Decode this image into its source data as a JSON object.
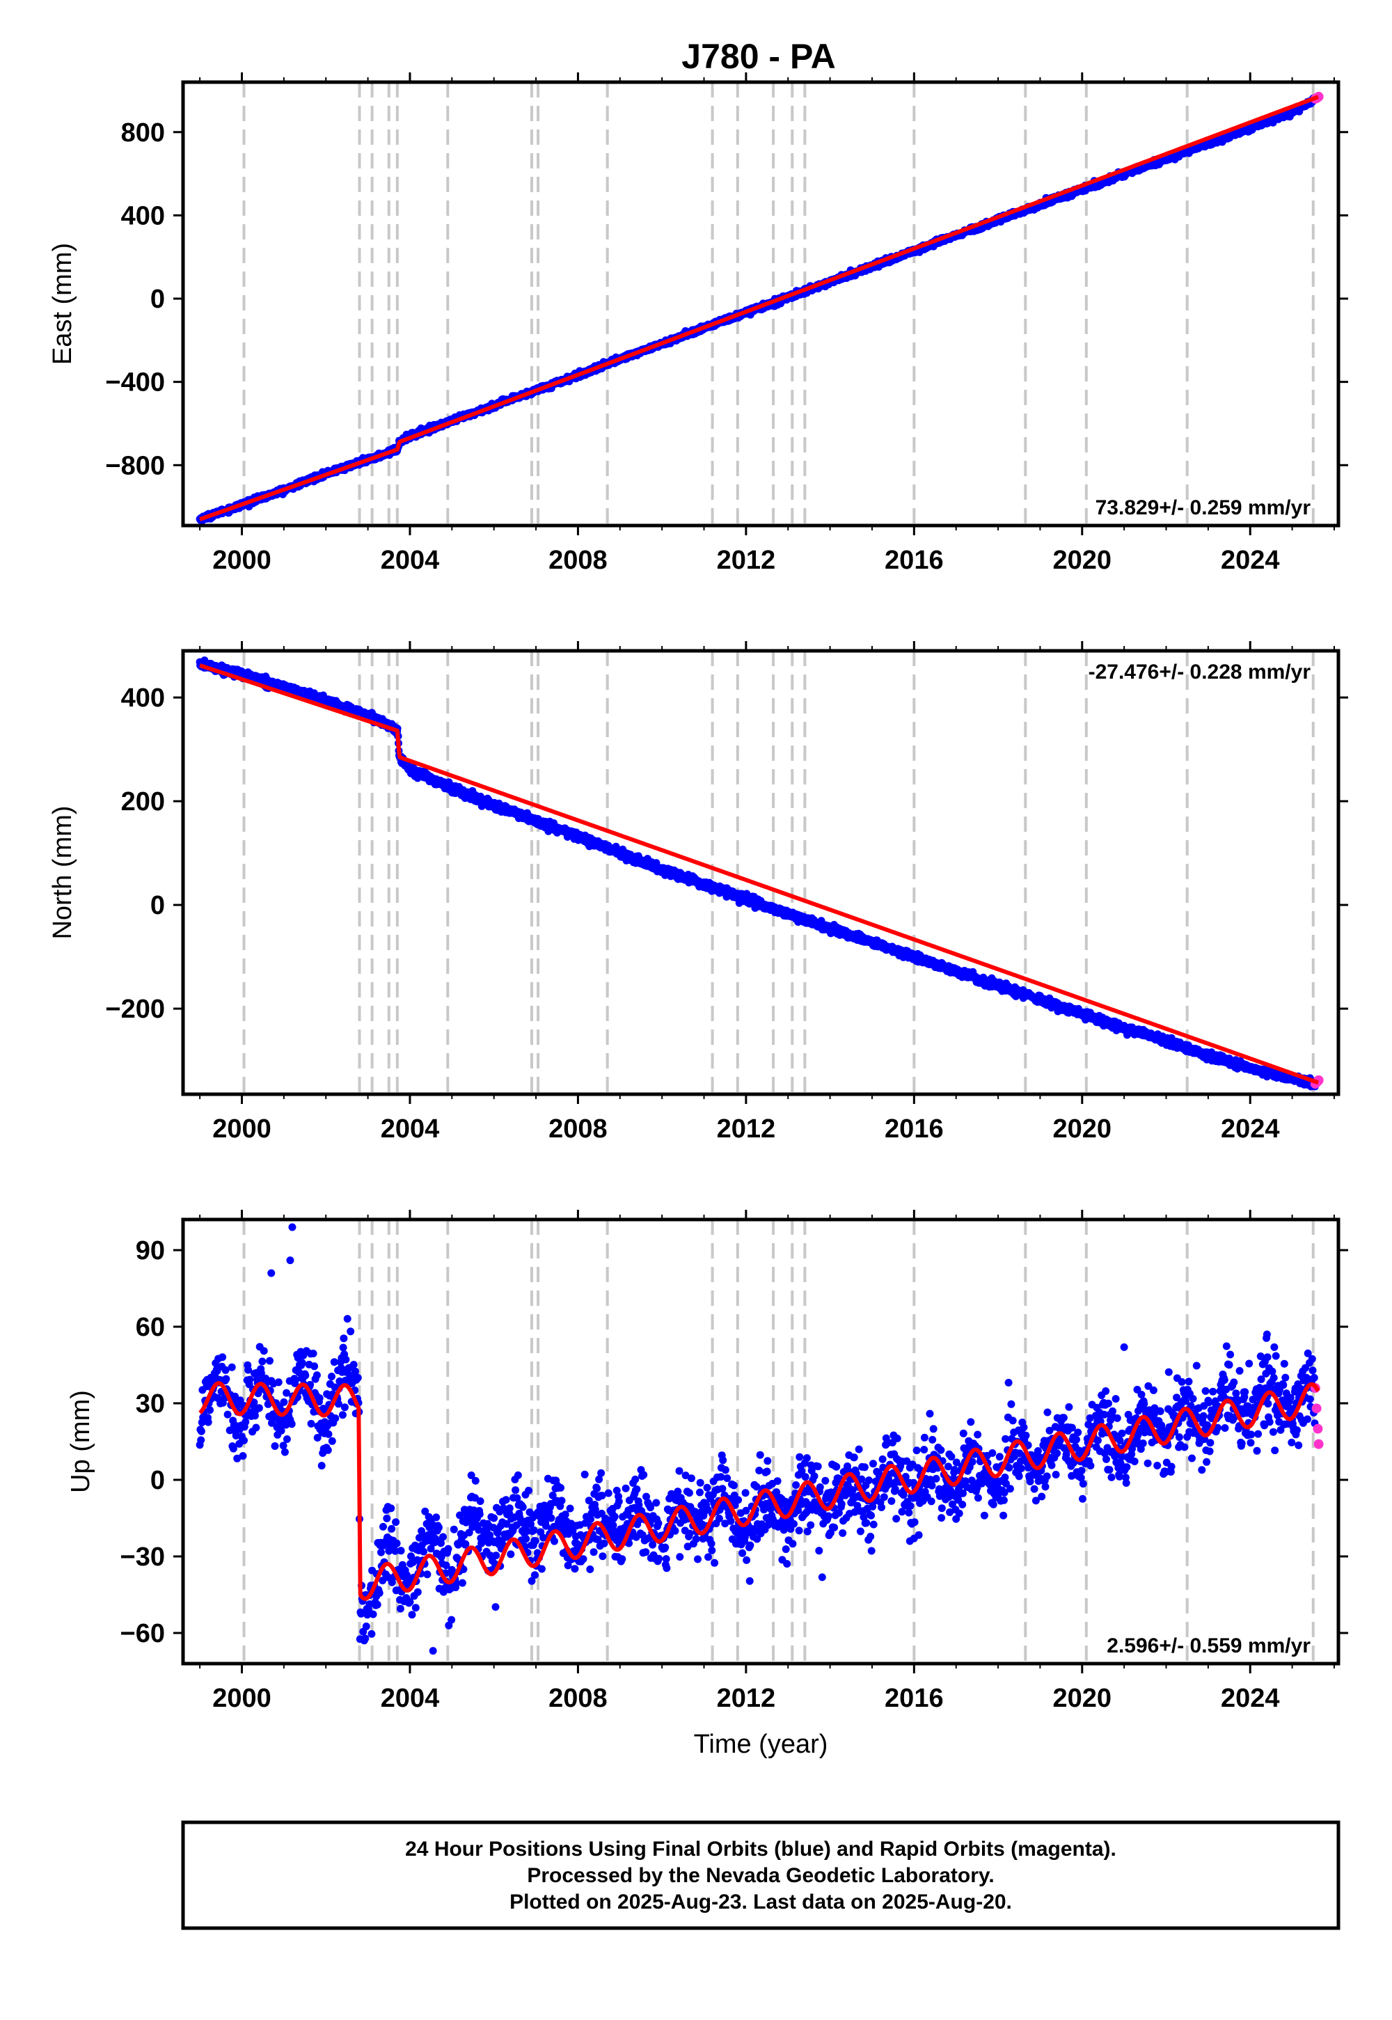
{
  "title": "J780 - PA",
  "footer": {
    "lines": [
      "24 Hour Positions Using Final Orbits (blue) and Rapid Orbits (magenta).",
      "Processed by the Nevada Geodetic Laboratory.",
      "Plotted on 2025-Aug-23. Last data on 2025-Aug-20."
    ]
  },
  "colors": {
    "final_orbits": "#0000ff",
    "rapid_orbits": "#ff33cc",
    "model": "#ff0000",
    "event_lines": "#c8c8c8",
    "frame": "#000000"
  },
  "chart_data": [
    {
      "type": "scatter",
      "ylabel": "East (mm)",
      "xlim": [
        1998.6,
        2026.1
      ],
      "ylim": [
        -1090,
        1040
      ],
      "x_ticks": [
        2000,
        2004,
        2008,
        2012,
        2016,
        2020,
        2024
      ],
      "x_tick_labels": [
        "2000",
        "2004",
        "2008",
        "2012",
        "2016",
        "2020",
        "2024"
      ],
      "y_ticks": [
        -800,
        -400,
        0,
        400,
        800
      ],
      "y_tick_labels": [
        "−800",
        "−400",
        "0",
        "400",
        "800"
      ],
      "rate": "73.829+/- 0.259 mm/yr",
      "rate_placement": "bottom-right",
      "event_lines": [
        2000.05,
        2002.8,
        2003.1,
        2003.5,
        2003.7,
        2004.9,
        2006.9,
        2007.05,
        2008.7,
        2011.2,
        2011.8,
        2012.65,
        2013.1,
        2013.4,
        2016.0,
        2018.65,
        2020.1,
        2022.5,
        2025.5
      ],
      "series": [
        {
          "role": "final orbits (blue)",
          "x": [
            1999.0,
            2000.0,
            2001.0,
            2002.0,
            2003.0,
            2003.7,
            2003.75,
            2004.0,
            2005.0,
            2006.0,
            2007.0,
            2008.0,
            2009.0,
            2010.0,
            2011.0,
            2012.0,
            2013.0,
            2014.0,
            2015.0,
            2016.0,
            2017.0,
            2018.0,
            2019.0,
            2020.0,
            2021.0,
            2022.0,
            2023.0,
            2024.0,
            2025.0,
            2025.55
          ],
          "values": [
            -1060,
            -990,
            -920,
            -840,
            -775,
            -725,
            -688,
            -660,
            -588,
            -515,
            -440,
            -368,
            -290,
            -218,
            -140,
            -66,
            6,
            80,
            155,
            230,
            305,
            378,
            452,
            525,
            600,
            673,
            745,
            820,
            895,
            960
          ]
        },
        {
          "role": "rapid orbits (magenta)",
          "x": [
            2025.55,
            2025.58,
            2025.61,
            2025.63
          ],
          "values": [
            960,
            963,
            967,
            970
          ]
        }
      ],
      "model": {
        "x": [
          1999.0,
          2003.7,
          2003.75,
          2025.63
        ],
        "values": [
          -1060,
          -725,
          -688,
          970
        ]
      }
    },
    {
      "type": "scatter",
      "ylabel": "North (mm)",
      "xlim": [
        1998.6,
        2026.1
      ],
      "ylim": [
        -365,
        490
      ],
      "x_ticks": [
        2000,
        2004,
        2008,
        2012,
        2016,
        2020,
        2024
      ],
      "x_tick_labels": [
        "2000",
        "2004",
        "2008",
        "2012",
        "2016",
        "2020",
        "2024"
      ],
      "y_ticks": [
        -200,
        0,
        200,
        400
      ],
      "y_tick_labels": [
        "−200",
        "0",
        "200",
        "400"
      ],
      "rate": "-27.476+/- 0.228 mm/yr",
      "rate_placement": "top-right",
      "event_lines": [
        2000.05,
        2002.8,
        2003.1,
        2003.5,
        2003.7,
        2004.9,
        2006.9,
        2007.05,
        2008.7,
        2011.2,
        2011.8,
        2012.65,
        2013.1,
        2013.4,
        2016.0,
        2018.65,
        2020.1,
        2022.5,
        2025.5
      ],
      "series": [
        {
          "role": "final orbits (blue)",
          "x": [
            1999.0,
            2000.0,
            2001.0,
            2002.0,
            2003.0,
            2003.7,
            2003.75,
            2004.0,
            2005.0,
            2006.0,
            2007.0,
            2008.0,
            2009.0,
            2010.0,
            2011.0,
            2012.0,
            2013.0,
            2014.0,
            2015.0,
            2016.0,
            2017.0,
            2018.0,
            2019.0,
            2020.0,
            2021.0,
            2022.0,
            2023.0,
            2024.0,
            2025.0,
            2025.55
          ],
          "values": [
            465,
            445,
            420,
            393,
            365,
            338,
            285,
            262,
            225,
            192,
            162,
            132,
            100,
            68,
            40,
            12,
            -18,
            -45,
            -72,
            -100,
            -128,
            -155,
            -183,
            -210,
            -238,
            -262,
            -290,
            -315,
            -335,
            -345
          ]
        },
        {
          "role": "rapid orbits (magenta)",
          "x": [
            2025.55,
            2025.58,
            2025.61,
            2025.63
          ],
          "values": [
            -345,
            -342,
            -340,
            -338
          ]
        }
      ],
      "model": {
        "x": [
          1999.0,
          2003.7,
          2003.75,
          2025.63
        ],
        "values": [
          462,
          336,
          285,
          -343
        ]
      }
    },
    {
      "type": "scatter",
      "ylabel": "Up (mm)",
      "xlabel": "Time (year)",
      "xlim": [
        1998.6,
        2026.1
      ],
      "ylim": [
        -72,
        102
      ],
      "x_ticks": [
        2000,
        2004,
        2008,
        2012,
        2016,
        2020,
        2024
      ],
      "x_tick_labels": [
        "2000",
        "2004",
        "2008",
        "2012",
        "2016",
        "2020",
        "2024"
      ],
      "y_ticks": [
        -60,
        -30,
        0,
        30,
        60,
        90
      ],
      "y_tick_labels": [
        "−60",
        "−30",
        "0",
        "30",
        "60",
        "90"
      ],
      "rate": "2.596+/- 0.559 mm/yr",
      "rate_placement": "bottom-right",
      "event_lines": [
        2000.05,
        2002.8,
        2003.1,
        2003.5,
        2003.7,
        2004.9,
        2006.9,
        2007.05,
        2008.7,
        2011.2,
        2011.8,
        2012.65,
        2013.1,
        2013.4,
        2016.0,
        2018.65,
        2020.1,
        2022.5,
        2025.5
      ],
      "series": [
        {
          "role": "final orbits (blue)",
          "x": [
            1999.0,
            1999.5,
            2000.0,
            2000.5,
            2001.0,
            2001.5,
            2002.0,
            2002.5,
            2002.79,
            2002.81,
            2003.0,
            2003.5,
            2004.0,
            2004.5,
            2005.0,
            2005.5,
            2006.0,
            2007.0,
            2008.0,
            2009.0,
            2010.0,
            2011.0,
            2012.0,
            2013.0,
            2014.0,
            2015.0,
            2016.0,
            2017.0,
            2018.0,
            2019.0,
            2020.0,
            2021.0,
            2022.0,
            2023.0,
            2024.0,
            2025.0,
            2025.55
          ],
          "values": [
            28,
            38,
            25,
            36,
            24,
            37,
            27,
            38,
            34,
            -42,
            -47,
            -30,
            -38,
            -28,
            -32,
            -18,
            -20,
            -16,
            -22,
            -14,
            -20,
            -12,
            -16,
            -10,
            -8,
            -4,
            -2,
            2,
            4,
            10,
            14,
            18,
            22,
            26,
            30,
            32,
            30
          ],
          "visible_range": [
            -68,
            98
          ]
        },
        {
          "role": "rapid orbits (magenta)",
          "x": [
            2025.55,
            2025.58,
            2025.61,
            2025.63
          ],
          "values": [
            36,
            28,
            20,
            14
          ]
        }
      ],
      "model": {
        "seasonal_amplitude_mm": 6,
        "x": [
          1999.0,
          2002.79,
          2002.81,
          2025.63
        ],
        "values": [
          32,
          31,
          -41,
          32
        ]
      }
    }
  ]
}
